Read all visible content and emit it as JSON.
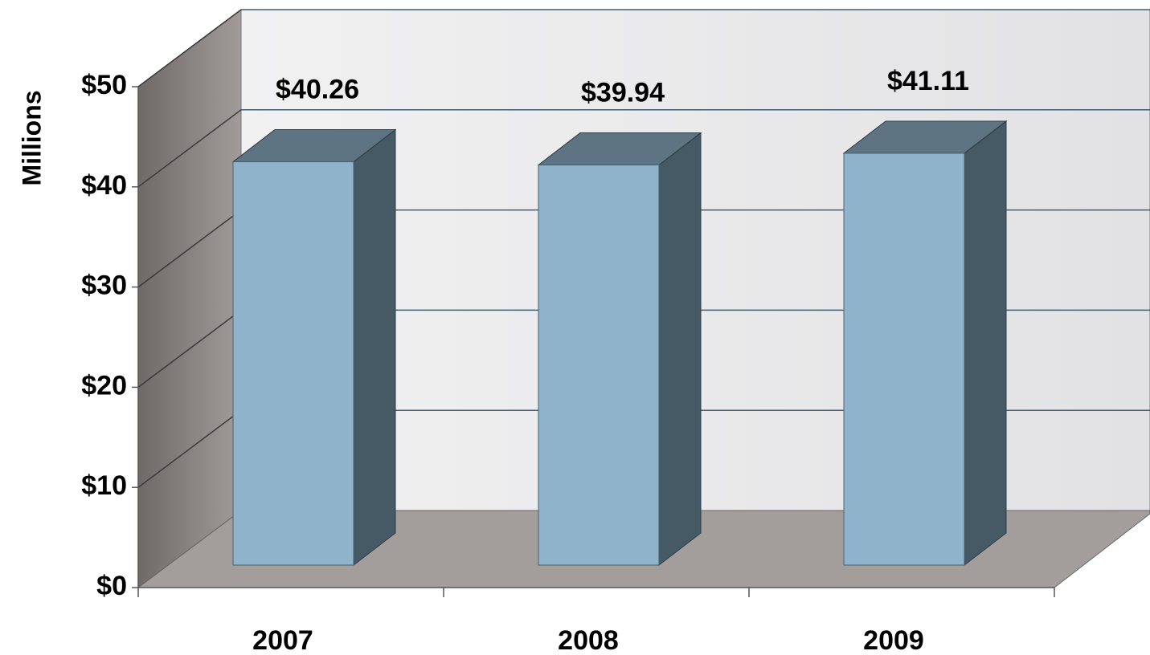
{
  "chart_data": {
    "type": "bar",
    "categories": [
      "2007",
      "2008",
      "2009"
    ],
    "values": [
      40.26,
      39.94,
      41.11
    ],
    "value_labels": [
      "$40.26",
      "$39.94",
      "$41.11"
    ],
    "ylabel": "Millions",
    "ylim": [
      0,
      50
    ],
    "yticks": [
      0,
      10,
      20,
      30,
      40,
      50
    ],
    "ytick_labels": [
      "$0",
      "$10",
      "$20",
      "$30",
      "$40",
      "$50"
    ],
    "grid": true,
    "legend": "none",
    "style": "3d"
  },
  "colors": {
    "bar_front": "#8fb3cb",
    "bar_side": "#465a66",
    "bar_top": "#5e7482",
    "back_wall": "#e9e9ea",
    "side_wall": "#8a8582",
    "floor": "#a39e9b",
    "grid": "#3f5f70"
  }
}
